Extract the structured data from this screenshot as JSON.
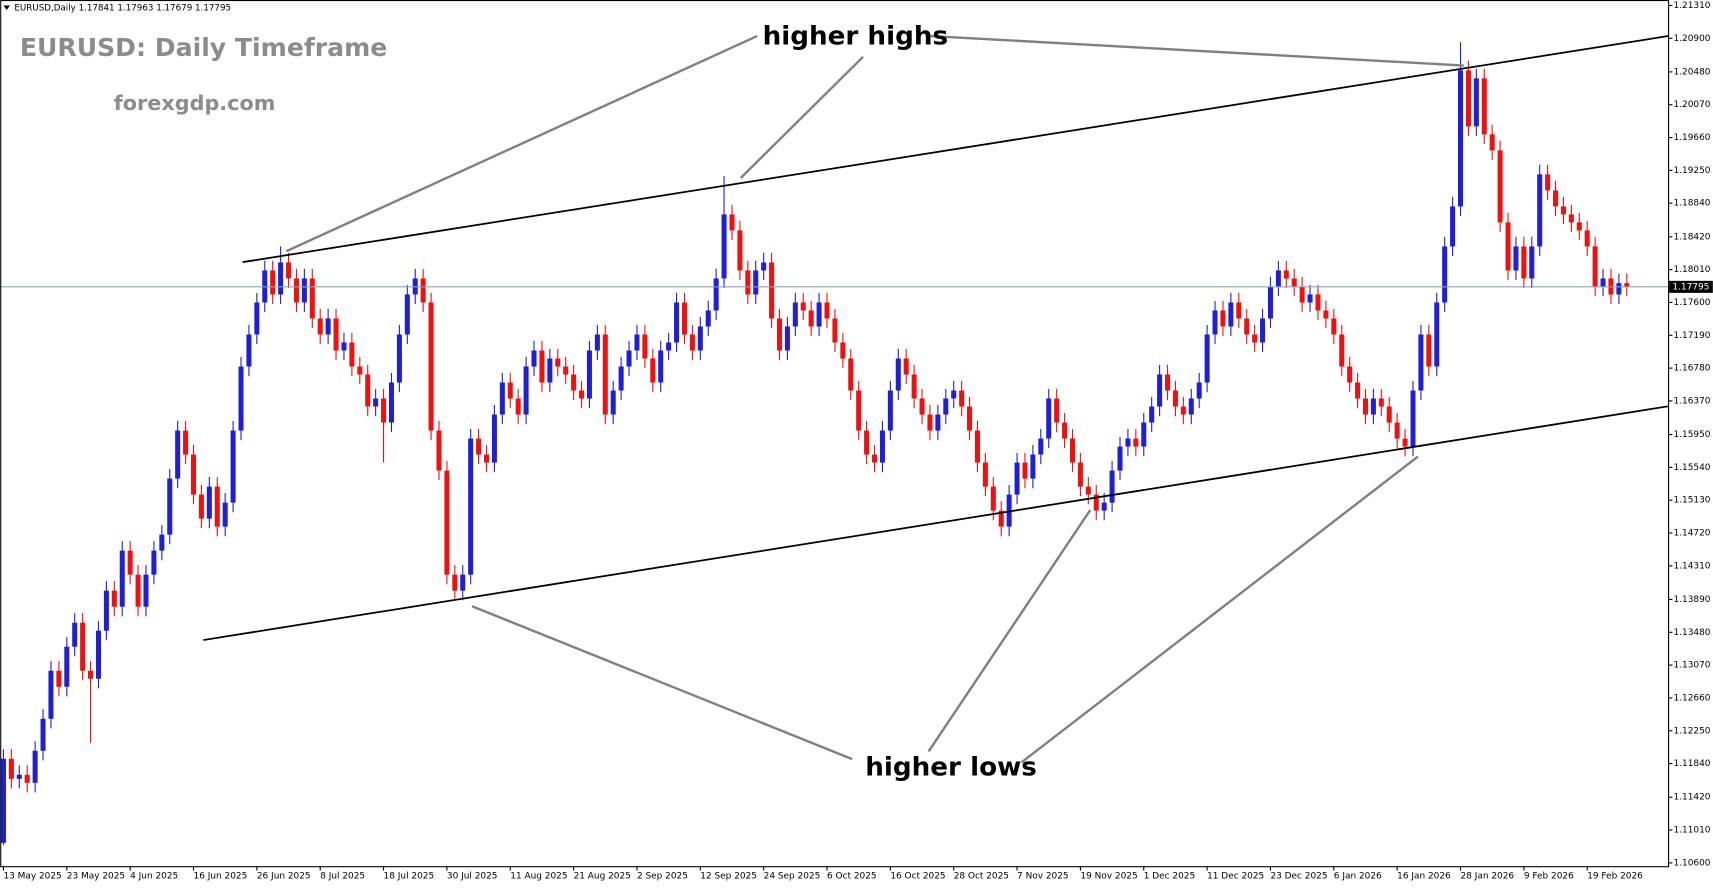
{
  "chart_data": {
    "type": "candlestick",
    "header": "EURUSD,Daily 1.17841 1.17963 1.17679 1.17795",
    "title": "EURUSD: Daily Timeframe",
    "subtitle": "forexgdp.com",
    "annotations": [
      "higher highs",
      "higher lows"
    ],
    "up_color": "#1f1fd6",
    "down_color": "#f01010",
    "current_price": 1.17795,
    "ylim": [
      1.10559,
      1.21378
    ],
    "yticks": [
      {
        "value": 1.2131,
        "label": "1.21310"
      },
      {
        "value": 1.209,
        "label": "1.20900"
      },
      {
        "value": 1.2048,
        "label": "1.20480"
      },
      {
        "value": 1.2007,
        "label": "1.20070"
      },
      {
        "value": 1.1966,
        "label": "1.19660"
      },
      {
        "value": 1.1925,
        "label": "1.19250"
      },
      {
        "value": 1.1884,
        "label": "1.18840"
      },
      {
        "value": 1.1842,
        "label": "1.18420"
      },
      {
        "value": 1.1801,
        "label": "1.18010"
      },
      {
        "value": 1.176,
        "label": "1.17600"
      },
      {
        "value": 1.1719,
        "label": "1.17190"
      },
      {
        "value": 1.1678,
        "label": "1.16780"
      },
      {
        "value": 1.1637,
        "label": "1.16370"
      },
      {
        "value": 1.1595,
        "label": "1.15950"
      },
      {
        "value": 1.1554,
        "label": "1.15540"
      },
      {
        "value": 1.1513,
        "label": "1.15130"
      },
      {
        "value": 1.1472,
        "label": "1.14720"
      },
      {
        "value": 1.1431,
        "label": "1.14310"
      },
      {
        "value": 1.1389,
        "label": "1.13890"
      },
      {
        "value": 1.1348,
        "label": "1.13480"
      },
      {
        "value": 1.1307,
        "label": "1.13070"
      },
      {
        "value": 1.1266,
        "label": "1.12660"
      },
      {
        "value": 1.1225,
        "label": "1.12250"
      },
      {
        "value": 1.1184,
        "label": "1.11840"
      },
      {
        "value": 1.1142,
        "label": "1.11420"
      },
      {
        "value": 1.1101,
        "label": "1.11010"
      },
      {
        "value": 1.106,
        "label": "1.10600"
      }
    ],
    "categories": [
      "13 May 2025",
      null,
      null,
      null,
      null,
      null,
      null,
      null,
      "23 May 2025",
      null,
      null,
      null,
      null,
      null,
      null,
      null,
      "4 Jun 2025",
      null,
      null,
      null,
      null,
      null,
      null,
      null,
      "16 Jun 2025",
      null,
      null,
      null,
      null,
      null,
      null,
      null,
      "26 Jun 2025",
      null,
      null,
      null,
      null,
      null,
      null,
      null,
      "8 Jul 2025",
      null,
      null,
      null,
      null,
      null,
      null,
      null,
      "18 Jul 2025",
      null,
      null,
      null,
      null,
      null,
      null,
      null,
      "30 Jul 2025",
      null,
      null,
      null,
      null,
      null,
      null,
      null,
      "11 Aug 2025",
      null,
      null,
      null,
      null,
      null,
      null,
      null,
      "21 Aug 2025",
      null,
      null,
      null,
      null,
      null,
      null,
      null,
      "2 Sep 2025",
      null,
      null,
      null,
      null,
      null,
      null,
      null,
      "12 Sep 2025",
      null,
      null,
      null,
      null,
      null,
      null,
      null,
      "24 Sep 2025",
      null,
      null,
      null,
      null,
      null,
      null,
      null,
      "6 Oct 2025",
      null,
      null,
      null,
      null,
      null,
      null,
      null,
      "16 Oct 2025",
      null,
      null,
      null,
      null,
      null,
      null,
      null,
      "28 Oct 2025",
      null,
      null,
      null,
      null,
      null,
      null,
      null,
      "7 Nov 2025",
      null,
      null,
      null,
      null,
      null,
      null,
      null,
      "19 Nov 2025",
      null,
      null,
      null,
      null,
      null,
      null,
      null,
      "1 Dec 2025",
      null,
      null,
      null,
      null,
      null,
      null,
      null,
      "11 Dec 2025",
      null,
      null,
      null,
      null,
      null,
      null,
      null,
      "23 Dec 2025",
      null,
      null,
      null,
      null,
      null,
      null,
      null,
      "6 Jan 2026",
      null,
      null,
      null,
      null,
      null,
      null,
      null,
      "16 Jan 2026",
      null,
      null,
      null,
      null,
      null,
      null,
      null,
      "28 Jan 2026",
      null,
      null,
      null,
      null,
      null,
      null,
      null,
      "9 Feb 2026",
      null,
      null,
      null,
      null,
      null,
      null,
      null,
      "19 Feb 2026",
      null,
      null,
      null,
      null,
      null
    ],
    "open": [
      1.1085,
      1.119,
      1.1165,
      1.117,
      1.116,
      1.12,
      1.124,
      1.13,
      1.128,
      1.133,
      1.136,
      1.13,
      1.129,
      1.135,
      1.14,
      1.138,
      1.145,
      1.142,
      1.138,
      1.142,
      1.145,
      1.147,
      1.154,
      1.16,
      1.157,
      1.152,
      1.149,
      1.153,
      1.148,
      1.151,
      1.16,
      1.168,
      1.172,
      1.176,
      1.18,
      1.177,
      1.181,
      1.179,
      1.176,
      1.179,
      1.174,
      1.172,
      1.174,
      1.17,
      1.171,
      1.168,
      1.167,
      1.163,
      1.164,
      1.161,
      1.166,
      1.172,
      1.177,
      1.179,
      1.176,
      1.16,
      1.155,
      1.142,
      1.14,
      1.142,
      1.159,
      1.157,
      1.156,
      1.162,
      1.166,
      1.164,
      1.162,
      1.168,
      1.17,
      1.166,
      1.169,
      1.168,
      1.167,
      1.165,
      1.164,
      1.17,
      1.172,
      1.162,
      1.165,
      1.168,
      1.17,
      1.172,
      1.169,
      1.166,
      1.17,
      1.171,
      1.176,
      1.172,
      1.17,
      1.173,
      1.175,
      1.179,
      1.187,
      1.185,
      1.18,
      1.177,
      1.18,
      1.181,
      1.174,
      1.17,
      1.173,
      1.176,
      1.175,
      1.173,
      1.176,
      1.174,
      1.171,
      1.169,
      1.165,
      1.16,
      1.157,
      1.156,
      1.16,
      1.165,
      1.169,
      1.167,
      1.164,
      1.162,
      1.16,
      1.162,
      1.164,
      1.165,
      1.163,
      1.16,
      1.156,
      1.153,
      1.15,
      1.148,
      1.152,
      1.156,
      1.154,
      1.157,
      1.159,
      1.164,
      1.161,
      1.159,
      1.156,
      1.153,
      1.152,
      1.15,
      1.151,
      1.155,
      1.158,
      1.159,
      1.158,
      1.161,
      1.163,
      1.167,
      1.165,
      1.163,
      1.162,
      1.164,
      1.166,
      1.172,
      1.175,
      1.173,
      1.176,
      1.174,
      1.172,
      1.171,
      1.174,
      1.178,
      1.18,
      1.179,
      1.178,
      1.176,
      1.177,
      1.175,
      1.174,
      1.172,
      1.168,
      1.166,
      1.164,
      1.162,
      1.164,
      1.163,
      1.161,
      1.159,
      1.158,
      1.165,
      1.172,
      1.168,
      1.176,
      1.183,
      1.188,
      1.205,
      1.198,
      1.204,
      1.197,
      1.195,
      1.186,
      1.18,
      1.183,
      1.179,
      1.183,
      1.192,
      1.19,
      1.188,
      1.187,
      1.186,
      1.185,
      1.183,
      1.178,
      1.179,
      1.177,
      1.17841
    ],
    "high": [
      1.1202,
      1.1202,
      1.1182,
      1.1182,
      1.1212,
      1.1252,
      1.1312,
      1.1312,
      1.1342,
      1.1372,
      1.1372,
      1.1312,
      1.1362,
      1.1412,
      1.1412,
      1.1462,
      1.1462,
      1.1432,
      1.1432,
      1.1462,
      1.1482,
      1.1552,
      1.1612,
      1.1612,
      1.1582,
      1.1532,
      1.1542,
      1.1542,
      1.1522,
      1.1612,
      1.1692,
      1.1732,
      1.1772,
      1.1812,
      1.1812,
      1.183,
      1.1822,
      1.1802,
      1.1802,
      1.1802,
      1.1752,
      1.1752,
      1.1752,
      1.1722,
      1.1722,
      1.1692,
      1.1682,
      1.1652,
      1.1652,
      1.1672,
      1.1732,
      1.1782,
      1.1802,
      1.1802,
      1.1772,
      1.1612,
      1.1562,
      1.1432,
      1.1432,
      1.1602,
      1.1602,
      1.1582,
      1.1632,
      1.1672,
      1.1672,
      1.1652,
      1.1692,
      1.1712,
      1.1712,
      1.1702,
      1.1702,
      1.1692,
      1.1682,
      1.1662,
      1.1712,
      1.1732,
      1.1732,
      1.1662,
      1.1692,
      1.1712,
      1.1732,
      1.1732,
      1.1702,
      1.1712,
      1.1722,
      1.1772,
      1.1772,
      1.1732,
      1.1742,
      1.1762,
      1.1802,
      1.1918,
      1.1882,
      1.1862,
      1.1812,
      1.1812,
      1.1822,
      1.1822,
      1.1752,
      1.1742,
      1.1772,
      1.1772,
      1.1762,
      1.1772,
      1.1772,
      1.1752,
      1.1722,
      1.1702,
      1.1662,
      1.1612,
      1.1582,
      1.1612,
      1.1662,
      1.1702,
      1.1702,
      1.1682,
      1.1652,
      1.1632,
      1.1632,
      1.1652,
      1.1662,
      1.1662,
      1.1642,
      1.1612,
      1.1572,
      1.1542,
      1.1512,
      1.1532,
      1.1572,
      1.1572,
      1.1582,
      1.1602,
      1.1652,
      1.1652,
      1.1622,
      1.1602,
      1.1572,
      1.1542,
      1.1532,
      1.1522,
      1.1562,
      1.1592,
      1.1602,
      1.1602,
      1.1622,
      1.1642,
      1.1682,
      1.1682,
      1.1662,
      1.1642,
      1.1652,
      1.1672,
      1.1732,
      1.1762,
      1.1762,
      1.1772,
      1.1772,
      1.1752,
      1.1732,
      1.1752,
      1.1792,
      1.1812,
      1.1812,
      1.1802,
      1.1792,
      1.1782,
      1.1782,
      1.1762,
      1.1752,
      1.1732,
      1.1692,
      1.1672,
      1.1652,
      1.1652,
      1.1652,
      1.1642,
      1.1622,
      1.1602,
      1.1662,
      1.1732,
      1.1732,
      1.1772,
      1.1842,
      1.1892,
      1.2085,
      1.2062,
      1.2052,
      1.2052,
      1.1982,
      1.1962,
      1.1872,
      1.1842,
      1.1842,
      1.1842,
      1.1932,
      1.1932,
      1.1912,
      1.1892,
      1.1882,
      1.1872,
      1.1862,
      1.1842,
      1.1802,
      1.1802,
      1.1796,
      1.17963
    ],
    "low": [
      1.1082,
      1.1153,
      1.1153,
      1.1148,
      1.1148,
      1.1188,
      1.1228,
      1.1268,
      1.1268,
      1.1318,
      1.1288,
      1.121,
      1.1278,
      1.1338,
      1.1368,
      1.1368,
      1.1408,
      1.1368,
      1.1368,
      1.1408,
      1.1438,
      1.1458,
      1.1528,
      1.1558,
      1.1508,
      1.1478,
      1.1478,
      1.1468,
      1.1468,
      1.1498,
      1.1588,
      1.1668,
      1.1708,
      1.1748,
      1.1758,
      1.1758,
      1.1778,
      1.1748,
      1.1748,
      1.1728,
      1.1708,
      1.1708,
      1.1688,
      1.1688,
      1.1668,
      1.1658,
      1.1618,
      1.1618,
      1.156,
      1.1598,
      1.1648,
      1.1708,
      1.1758,
      1.1748,
      1.1588,
      1.1538,
      1.1408,
      1.139,
      1.1388,
      1.1408,
      1.1558,
      1.1548,
      1.1548,
      1.1608,
      1.1628,
      1.1608,
      1.1608,
      1.1668,
      1.1648,
      1.1648,
      1.1668,
      1.1658,
      1.1638,
      1.1628,
      1.1628,
      1.1688,
      1.1608,
      1.1608,
      1.1638,
      1.1668,
      1.1688,
      1.1678,
      1.1648,
      1.1648,
      1.1688,
      1.1698,
      1.1708,
      1.1688,
      1.1688,
      1.1718,
      1.1738,
      1.1778,
      1.1838,
      1.1788,
      1.1758,
      1.1758,
      1.1788,
      1.1728,
      1.1688,
      1.1688,
      1.1718,
      1.1738,
      1.1718,
      1.1718,
      1.1728,
      1.1698,
      1.1678,
      1.1638,
      1.1588,
      1.1558,
      1.1548,
      1.1548,
      1.1588,
      1.1638,
      1.1658,
      1.1628,
      1.1608,
      1.1588,
      1.1588,
      1.1608,
      1.1628,
      1.1618,
      1.1588,
      1.1548,
      1.1518,
      1.1488,
      1.1468,
      1.1468,
      1.1508,
      1.1528,
      1.1528,
      1.1558,
      1.1578,
      1.1598,
      1.1578,
      1.1548,
      1.1518,
      1.1508,
      1.1488,
      1.1488,
      1.1498,
      1.1538,
      1.1568,
      1.1568,
      1.1568,
      1.1598,
      1.1618,
      1.1638,
      1.1618,
      1.1608,
      1.1608,
      1.1628,
      1.1648,
      1.1708,
      1.1718,
      1.1718,
      1.1728,
      1.1708,
      1.1698,
      1.1698,
      1.1728,
      1.1768,
      1.1778,
      1.1768,
      1.1748,
      1.1748,
      1.1738,
      1.1728,
      1.1708,
      1.1668,
      1.1648,
      1.1628,
      1.1608,
      1.1608,
      1.1618,
      1.1598,
      1.1578,
      1.1568,
      1.1568,
      1.1638,
      1.1668,
      1.1668,
      1.1748,
      1.1818,
      1.1868,
      1.1968,
      1.1968,
      1.1958,
      1.1938,
      1.1848,
      1.1788,
      1.1788,
      1.1778,
      1.1778,
      1.1818,
      1.1888,
      1.1868,
      1.1858,
      1.1848,
      1.1838,
      1.1818,
      1.1768,
      1.1768,
      1.1758,
      1.1758,
      1.17679
    ],
    "close": [
      1.119,
      1.1165,
      1.117,
      1.116,
      1.12,
      1.124,
      1.13,
      1.128,
      1.133,
      1.136,
      1.13,
      1.129,
      1.135,
      1.14,
      1.138,
      1.145,
      1.142,
      1.138,
      1.142,
      1.145,
      1.147,
      1.154,
      1.16,
      1.157,
      1.152,
      1.149,
      1.153,
      1.148,
      1.151,
      1.16,
      1.168,
      1.172,
      1.176,
      1.18,
      1.177,
      1.181,
      1.179,
      1.176,
      1.179,
      1.174,
      1.172,
      1.174,
      1.17,
      1.171,
      1.168,
      1.167,
      1.163,
      1.164,
      1.161,
      1.166,
      1.172,
      1.177,
      1.179,
      1.176,
      1.16,
      1.155,
      1.142,
      1.14,
      1.142,
      1.159,
      1.157,
      1.156,
      1.162,
      1.166,
      1.164,
      1.162,
      1.168,
      1.17,
      1.166,
      1.169,
      1.168,
      1.167,
      1.165,
      1.164,
      1.17,
      1.172,
      1.162,
      1.165,
      1.168,
      1.17,
      1.172,
      1.169,
      1.166,
      1.17,
      1.171,
      1.176,
      1.172,
      1.17,
      1.173,
      1.175,
      1.179,
      1.187,
      1.185,
      1.18,
      1.177,
      1.18,
      1.181,
      1.174,
      1.17,
      1.173,
      1.176,
      1.175,
      1.173,
      1.176,
      1.174,
      1.171,
      1.169,
      1.165,
      1.16,
      1.157,
      1.156,
      1.16,
      1.165,
      1.169,
      1.167,
      1.164,
      1.162,
      1.16,
      1.162,
      1.164,
      1.165,
      1.163,
      1.16,
      1.156,
      1.153,
      1.15,
      1.148,
      1.152,
      1.156,
      1.154,
      1.157,
      1.159,
      1.164,
      1.161,
      1.159,
      1.156,
      1.153,
      1.152,
      1.15,
      1.151,
      1.155,
      1.158,
      1.159,
      1.158,
      1.161,
      1.163,
      1.167,
      1.165,
      1.163,
      1.162,
      1.164,
      1.166,
      1.172,
      1.175,
      1.173,
      1.176,
      1.174,
      1.172,
      1.171,
      1.174,
      1.178,
      1.18,
      1.179,
      1.178,
      1.176,
      1.177,
      1.175,
      1.174,
      1.172,
      1.168,
      1.166,
      1.164,
      1.162,
      1.164,
      1.163,
      1.161,
      1.159,
      1.158,
      1.165,
      1.172,
      1.168,
      1.176,
      1.183,
      1.188,
      1.205,
      1.198,
      1.204,
      1.197,
      1.195,
      1.186,
      1.18,
      1.183,
      1.179,
      1.183,
      1.192,
      1.19,
      1.188,
      1.187,
      1.186,
      1.185,
      1.183,
      1.178,
      1.179,
      1.177,
      1.17841,
      1.17795
    ]
  }
}
